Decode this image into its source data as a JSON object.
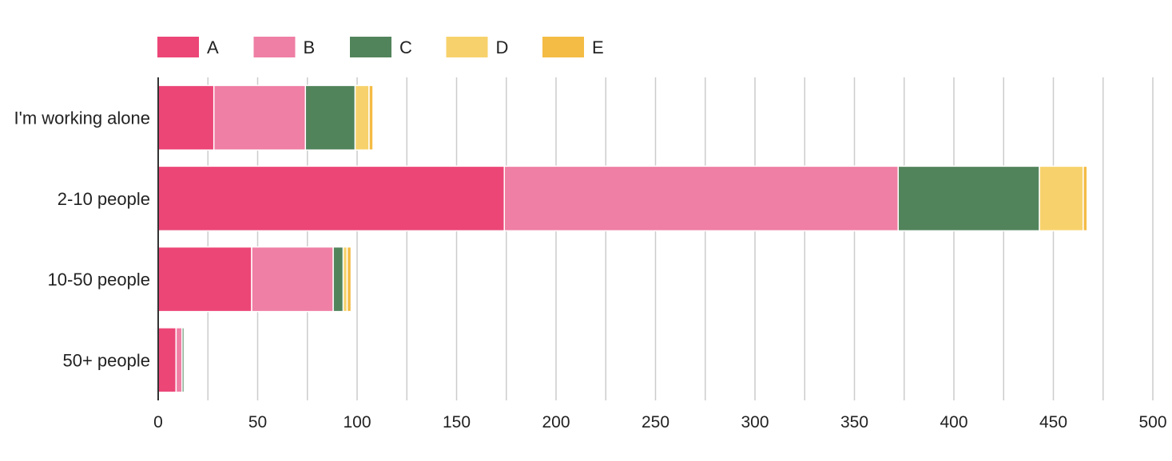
{
  "chart_data": {
    "type": "bar",
    "orientation": "horizontal",
    "stacked": true,
    "categories": [
      "I'm working alone",
      "2-10 people",
      "10-50 people",
      "50+ people"
    ],
    "series": [
      {
        "name": "A",
        "color": "#ec4677",
        "values": [
          28,
          174,
          47,
          9
        ]
      },
      {
        "name": "B",
        "color": "#ef7fa4",
        "values": [
          46,
          198,
          41,
          3
        ]
      },
      {
        "name": "C",
        "color": "#52845c",
        "values": [
          25,
          71,
          5,
          1
        ]
      },
      {
        "name": "D",
        "color": "#f7d26c",
        "values": [
          7,
          22,
          2,
          0
        ]
      },
      {
        "name": "E",
        "color": "#f4bc44",
        "values": [
          2,
          2,
          2,
          0
        ]
      }
    ],
    "xlim": [
      0,
      500
    ],
    "x_ticks": [
      0,
      50,
      100,
      150,
      200,
      250,
      300,
      350,
      400,
      450,
      500
    ],
    "grid": true,
    "legend_position": "top-left"
  }
}
